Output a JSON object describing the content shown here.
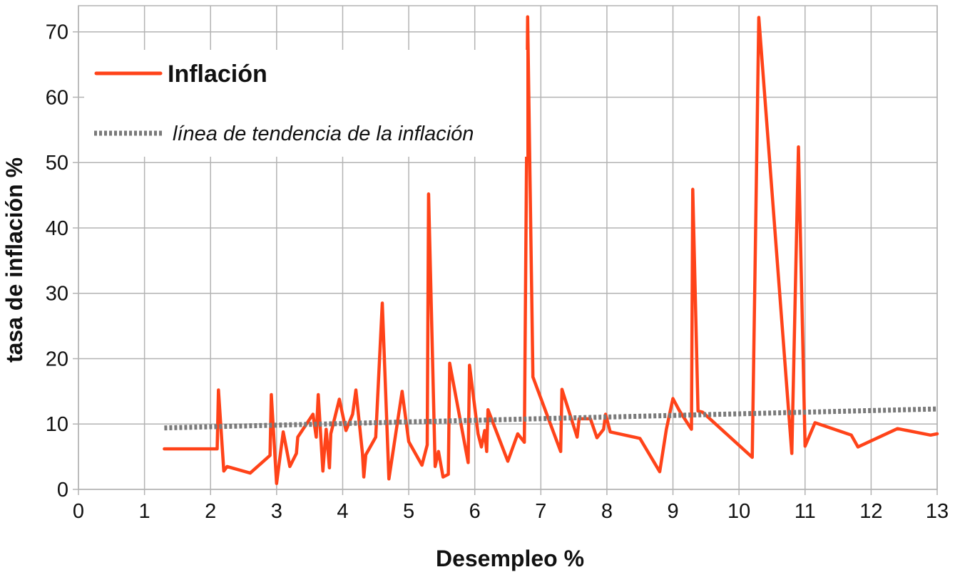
{
  "chart_data": {
    "type": "line",
    "title": "",
    "xlabel": "Desempleo %",
    "ylabel": "tasa de inflación %",
    "xlim": [
      0,
      13
    ],
    "ylim": [
      0,
      74
    ],
    "x_ticks": [
      0,
      1,
      2,
      3,
      4,
      5,
      6,
      7,
      8,
      9,
      10,
      11,
      12,
      13
    ],
    "y_ticks": [
      0,
      10,
      20,
      30,
      40,
      50,
      60,
      70
    ],
    "grid": true,
    "legend_position": "top-left",
    "series": [
      {
        "name": "Inflación",
        "color": "#ff4319",
        "style": "solid",
        "points": [
          [
            1.3,
            6.2
          ],
          [
            2.1,
            6.2
          ],
          [
            2.12,
            15.2
          ],
          [
            2.2,
            2.8
          ],
          [
            2.25,
            3.5
          ],
          [
            2.6,
            2.5
          ],
          [
            2.9,
            5.2
          ],
          [
            2.92,
            14.5
          ],
          [
            3.0,
            0.9
          ],
          [
            3.1,
            8.8
          ],
          [
            3.2,
            3.5
          ],
          [
            3.3,
            5.5
          ],
          [
            3.32,
            8.0
          ],
          [
            3.55,
            11.5
          ],
          [
            3.6,
            8.0
          ],
          [
            3.63,
            14.5
          ],
          [
            3.7,
            2.8
          ],
          [
            3.75,
            9.2
          ],
          [
            3.8,
            3.3
          ],
          [
            3.82,
            8.5
          ],
          [
            3.95,
            13.8
          ],
          [
            4.05,
            9.0
          ],
          [
            4.15,
            11.5
          ],
          [
            4.2,
            15.2
          ],
          [
            4.3,
            5.5
          ],
          [
            4.32,
            1.9
          ],
          [
            4.35,
            5.3
          ],
          [
            4.5,
            8.0
          ],
          [
            4.6,
            28.5
          ],
          [
            4.7,
            1.6
          ],
          [
            4.9,
            15.0
          ],
          [
            5.0,
            7.3
          ],
          [
            5.2,
            3.7
          ],
          [
            5.28,
            6.8
          ],
          [
            5.3,
            45.2
          ],
          [
            5.4,
            3.5
          ],
          [
            5.45,
            5.8
          ],
          [
            5.52,
            1.9
          ],
          [
            5.6,
            2.3
          ],
          [
            5.62,
            19.3
          ],
          [
            5.9,
            4.1
          ],
          [
            5.92,
            19.0
          ],
          [
            6.05,
            8.5
          ],
          [
            6.1,
            6.5
          ],
          [
            6.15,
            9.0
          ],
          [
            6.18,
            5.8
          ],
          [
            6.2,
            12.2
          ],
          [
            6.5,
            4.3
          ],
          [
            6.65,
            8.5
          ],
          [
            6.75,
            7.2
          ],
          [
            6.8,
            72.3
          ],
          [
            6.88,
            17.2
          ],
          [
            7.3,
            5.8
          ],
          [
            7.32,
            15.3
          ],
          [
            7.55,
            8.0
          ],
          [
            7.58,
            10.8
          ],
          [
            7.75,
            10.8
          ],
          [
            7.85,
            7.9
          ],
          [
            7.95,
            9.2
          ],
          [
            7.98,
            11.5
          ],
          [
            8.05,
            8.8
          ],
          [
            8.5,
            7.8
          ],
          [
            8.8,
            2.7
          ],
          [
            8.9,
            9.2
          ],
          [
            9.0,
            13.9
          ],
          [
            9.1,
            12.0
          ],
          [
            9.28,
            9.2
          ],
          [
            9.3,
            45.9
          ],
          [
            9.38,
            12.0
          ],
          [
            9.45,
            11.8
          ],
          [
            10.2,
            4.9
          ],
          [
            10.3,
            72.2
          ],
          [
            10.8,
            5.5
          ],
          [
            10.9,
            52.4
          ],
          [
            11.0,
            6.6
          ],
          [
            11.15,
            10.2
          ],
          [
            11.7,
            8.3
          ],
          [
            11.8,
            6.5
          ],
          [
            12.4,
            9.3
          ],
          [
            12.9,
            8.3
          ],
          [
            13.0,
            8.5
          ]
        ]
      },
      {
        "name": "línea de tendencia de la inflación",
        "color": "#7a7a7a",
        "style": "dotted",
        "points": [
          [
            1.3,
            9.4
          ],
          [
            13.0,
            12.3
          ]
        ]
      }
    ]
  }
}
